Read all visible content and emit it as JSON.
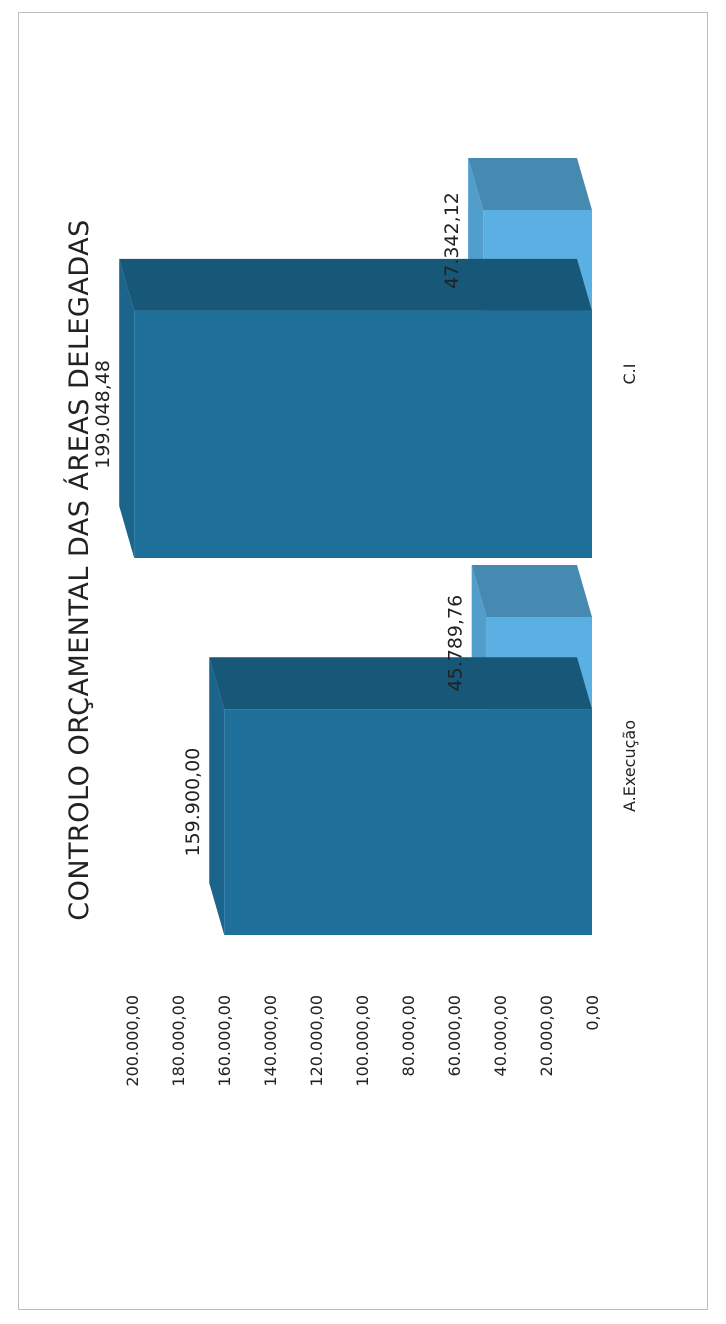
{
  "chart_data": {
    "type": "bar",
    "title": "CONTROLO ORÇAMENTAL DAS ÁREAS DELEGADAS",
    "categories": [
      "A.Execução",
      "C.I"
    ],
    "series": [
      {
        "values": [
          159900.0,
          199048.48
        ],
        "labels": [
          "159.900,00",
          "199.048,48"
        ]
      },
      {
        "values": [
          45789.76,
          47342.12
        ],
        "labels": [
          "45.789,76",
          "47.342,12"
        ]
      }
    ],
    "ylim": [
      0,
      200000
    ],
    "yticks": [
      "0,00",
      "20.000,00",
      "40.000,00",
      "60.000,00",
      "80.000,00",
      "100.000,00",
      "120.000,00",
      "140.000,00",
      "160.000,00",
      "180.000,00",
      "200.000,00"
    ],
    "xlabel": "",
    "ylabel": "",
    "grid": false,
    "orientation": "rotated-90-ccw",
    "style": "3d-column",
    "colors": [
      "#1e6f9a",
      "#5ab0e3"
    ]
  }
}
